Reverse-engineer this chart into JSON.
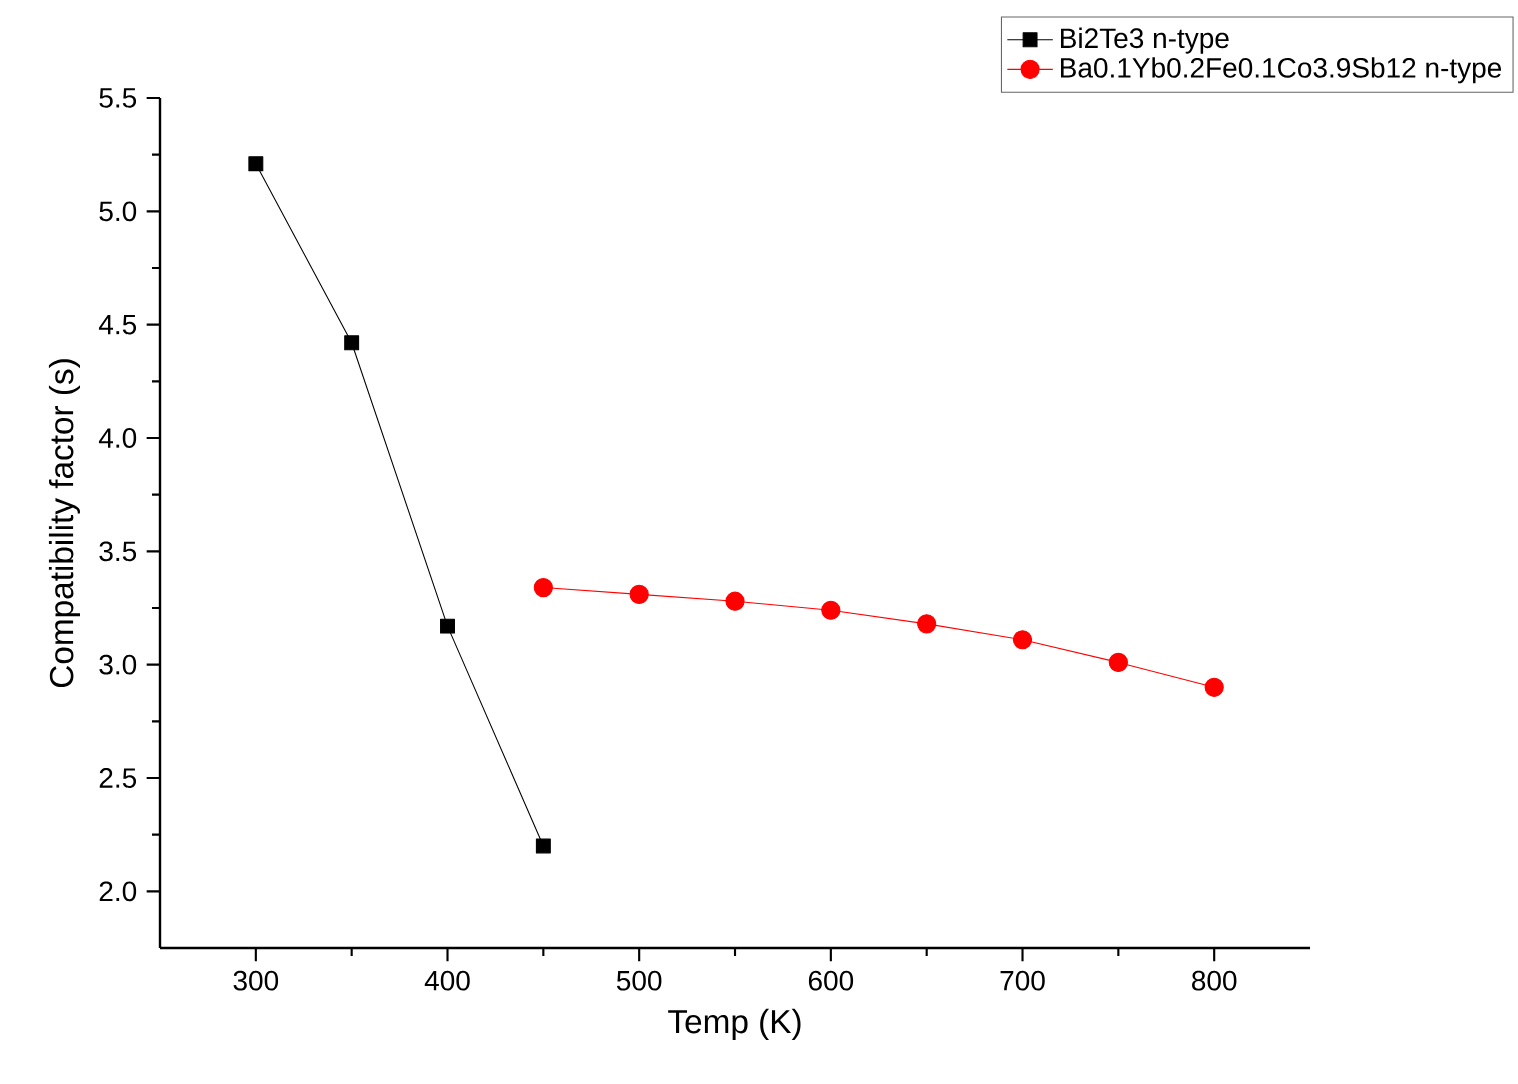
{
  "chart_data": {
    "type": "line",
    "xlabel": "Temp (K)",
    "ylabel": "Compatibility factor (s)",
    "xlim": [
      250,
      850
    ],
    "xticks": [
      300,
      400,
      500,
      600,
      700,
      800
    ],
    "ylim": [
      1.75,
      5.5
    ],
    "yticks": [
      {
        "value": 2,
        "label": "2.0"
      },
      2.5,
      {
        "value": 3,
        "label": "3.0"
      },
      3.5,
      {
        "value": 4,
        "label": "4.0"
      },
      4.5,
      {
        "value": 5,
        "label": "5.0"
      },
      5.5
    ],
    "legend": "top right",
    "grid": false,
    "line_style": "solid",
    "series": [
      {
        "name": "Bi2Te3 n-type",
        "color": "#000000",
        "marker": "square",
        "x": [
          300,
          350,
          400,
          450
        ],
        "values": [
          5.21,
          4.42,
          3.17,
          2.2
        ]
      },
      {
        "name": "Ba0.1Yb0.2Fe0.1Co3.9Sb12 n-type",
        "color": "#ff0000",
        "marker": "circle",
        "x": [
          450,
          500,
          550,
          600,
          650,
          700,
          750,
          800
        ],
        "values": [
          3.34,
          3.31,
          3.28,
          3.24,
          3.18,
          3.11,
          3.01,
          2.9
        ]
      }
    ]
  }
}
